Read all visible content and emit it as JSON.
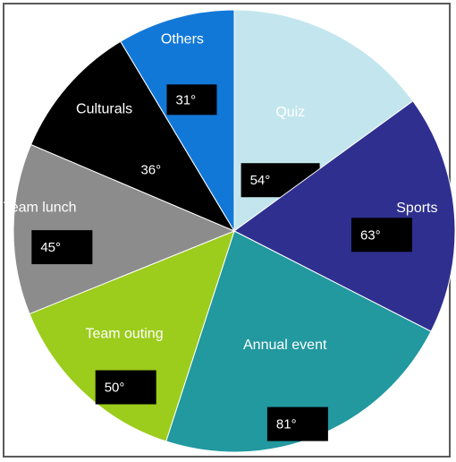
{
  "chart_data": {
    "type": "pie",
    "unit": "°",
    "categories": [
      "Quiz",
      "Sports",
      "Annual event",
      "Team outing",
      "Team lunch",
      "Culturals",
      "Others"
    ],
    "values": [
      54,
      63,
      81,
      50,
      45,
      36,
      31
    ],
    "colors": [
      "#c3e6ee",
      "#2e2f8f",
      "#22989f",
      "#9ccc1c",
      "#8c8c8c",
      "#000000",
      "#1278d8"
    ],
    "title": "",
    "legend": "none",
    "start_angle_deg": 0,
    "direction": "clockwise"
  }
}
